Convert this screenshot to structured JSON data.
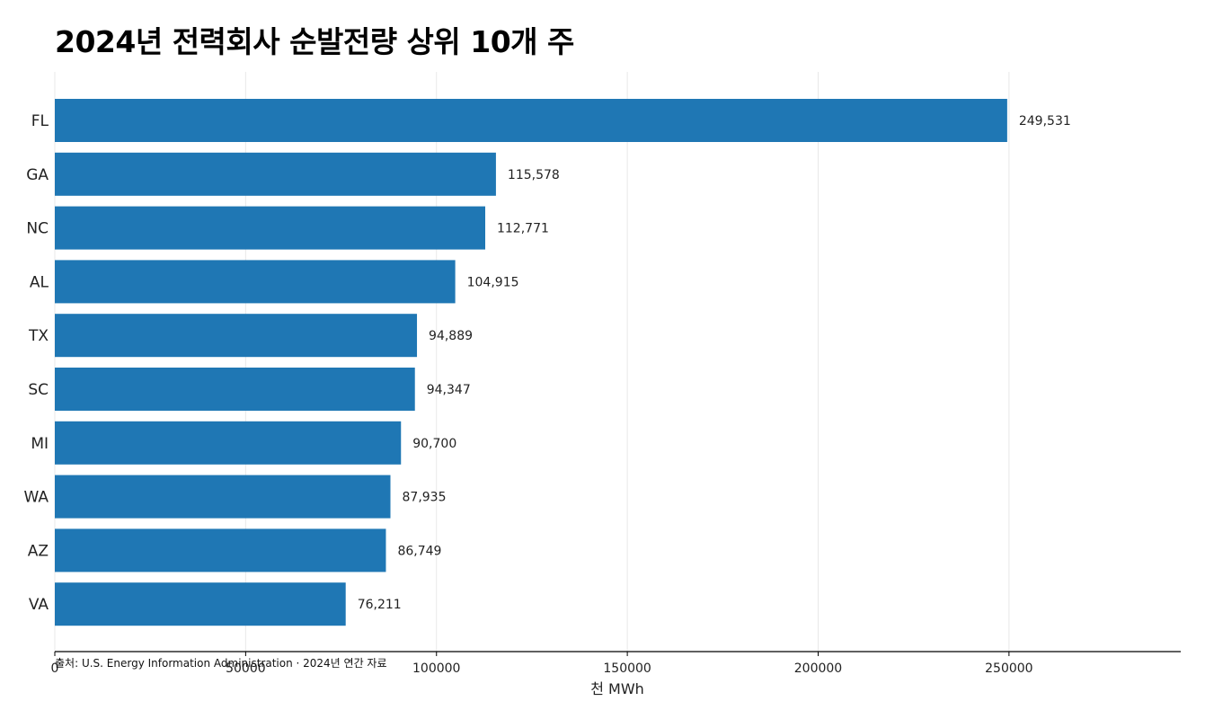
{
  "title": "2024년 전력회사 순발전량 상위 10개 주",
  "source_note": "출처: U.S. Energy Information Administration · 2024년 연간 자료",
  "colors": {
    "bar": "#1f77b4",
    "grid": "#e8e8e8",
    "axis": "#000000"
  },
  "chart_data": {
    "type": "bar",
    "orientation": "horizontal",
    "title": "2024년 전력회사 순발전량 상위 10개 주",
    "categories": [
      "FL",
      "GA",
      "NC",
      "AL",
      "TX",
      "SC",
      "MI",
      "WA",
      "AZ",
      "VA"
    ],
    "values": [
      249531,
      115578,
      112771,
      104915,
      94889,
      94347,
      90700,
      87935,
      86749,
      76211
    ],
    "value_labels": [
      "249,531",
      "115,578",
      "112,771",
      "104,915",
      "94,889",
      "94,347",
      "90,700",
      "87,935",
      "86,749",
      "76,211"
    ],
    "xlabel": "천 MWh",
    "ylabel": "",
    "xlim": [
      0,
      295000
    ],
    "xticks": [
      0,
      50000,
      100000,
      150000,
      200000,
      250000
    ],
    "xtick_labels": [
      "0",
      "50000",
      "100000",
      "150000",
      "200000",
      "250000"
    ],
    "grid": "vertical",
    "legend": "none"
  }
}
